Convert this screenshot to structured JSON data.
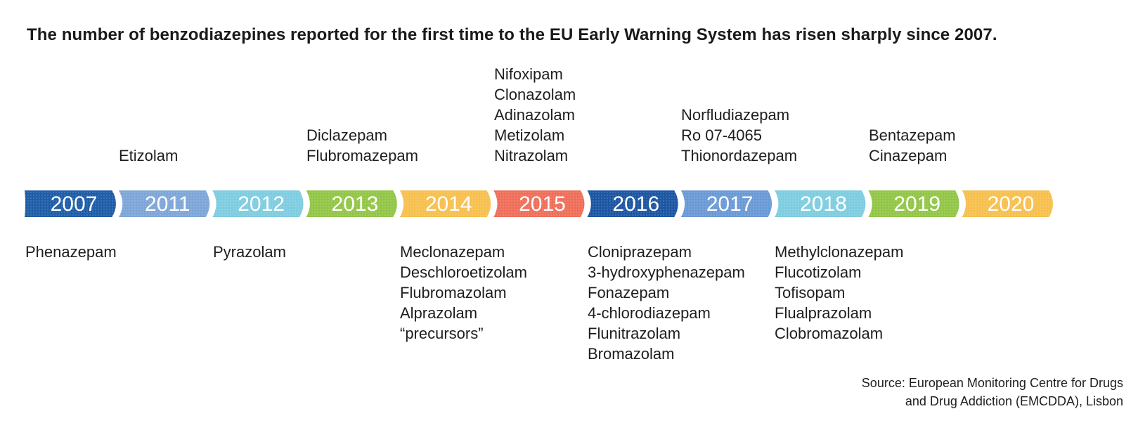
{
  "title": "The number of benzodiazepines reported for the first time to the EU Early Warning System has risen sharply since 2007.",
  "timeline": [
    {
      "year": "2007",
      "color": "#1f5ea8",
      "above": [],
      "below": [
        "Phenazepam"
      ]
    },
    {
      "year": "2011",
      "color": "#7ea6d8",
      "above": [
        "Etizolam"
      ],
      "below": []
    },
    {
      "year": "2012",
      "color": "#7fcde0",
      "above": [],
      "below": [
        "Pyrazolam"
      ]
    },
    {
      "year": "2013",
      "color": "#93c648",
      "above": [
        "Diclazepam",
        "Flubromazepam"
      ],
      "below": []
    },
    {
      "year": "2014",
      "color": "#f7c04f",
      "above": [],
      "below": [
        "Meclonazepam",
        "Deschloroetizolam",
        "Flubromazolam",
        "Alprazolam",
        "“precursors”"
      ]
    },
    {
      "year": "2015",
      "color": "#ef6f5a",
      "above": [
        "Nifoxipam",
        "Clonazolam",
        "Adinazolam",
        "Metizolam",
        "Nitrazolam"
      ],
      "below": []
    },
    {
      "year": "2016",
      "color": "#1d56a3",
      "above": [],
      "below": [
        "Cloniprazepam",
        "3-hydroxyphenazepam",
        "Fonazepam",
        "4-chlorodiazepam",
        "Flunitrazolam",
        "Bromazolam"
      ]
    },
    {
      "year": "2017",
      "color": "#6b9ad6",
      "above": [
        "Norfludiazepam",
        "Ro 07-4065",
        "Thionordazepam"
      ],
      "below": []
    },
    {
      "year": "2018",
      "color": "#7fcde0",
      "above": [],
      "below": [
        "Methylclonazepam",
        "Flucotizolam",
        "Tofisopam",
        "Flualprazolam",
        "Clobromazolam"
      ]
    },
    {
      "year": "2019",
      "color": "#93c648",
      "above": [
        "Bentazepam",
        "Cinazepam"
      ],
      "below": []
    },
    {
      "year": "2020",
      "color": "#f7c04f",
      "above": [],
      "below": []
    }
  ],
  "source": {
    "line1": "Source: European Monitoring Centre for Drugs",
    "line2": "and Drug Addiction (EMCDDA), Lisbon"
  }
}
